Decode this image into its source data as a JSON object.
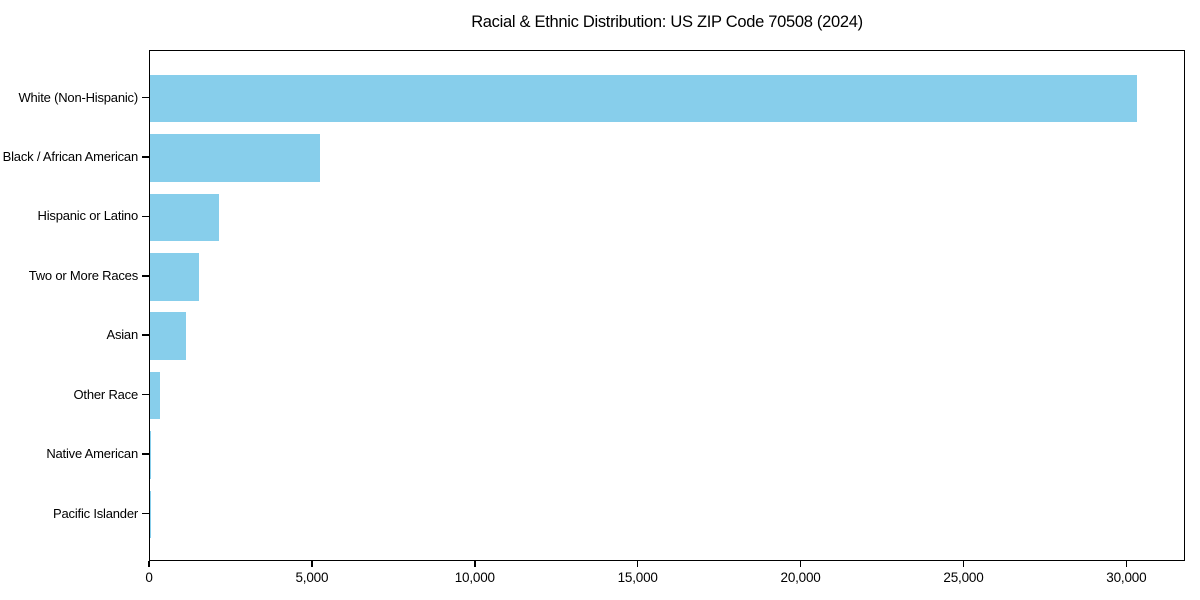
{
  "chart_data": {
    "type": "bar",
    "orientation": "horizontal",
    "title": "Racial & Ethnic Distribution: US ZIP Code 70508 (2024)",
    "categories": [
      "White (Non-Hispanic)",
      "Black / African American",
      "Hispanic or Latino",
      "Two or More Races",
      "Asian",
      "Other Race",
      "Native American",
      "Pacific Islander"
    ],
    "values": [
      30300,
      5220,
      2120,
      1500,
      1100,
      300,
      30,
      10
    ],
    "x_ticks": [
      0,
      5000,
      10000,
      15000,
      20000,
      25000,
      30000
    ],
    "x_tick_labels": [
      "0",
      "5,000",
      "10,000",
      "15,000",
      "20,000",
      "25,000",
      "30,000"
    ],
    "xlim": [
      0,
      31800
    ],
    "xlabel": "",
    "ylabel": "",
    "grid": false,
    "legend": "none",
    "bar_color": "#87CEEB",
    "axis_color": "#000000",
    "text_color": "#000000",
    "background_color": "#FFFFFF"
  }
}
